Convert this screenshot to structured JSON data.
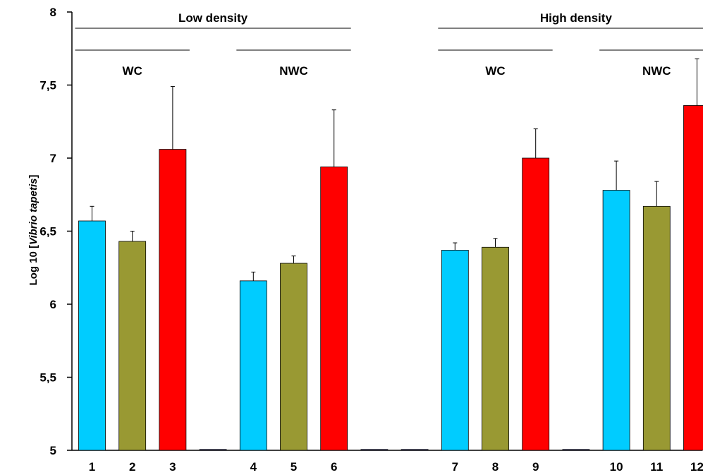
{
  "chart_data": {
    "type": "bar",
    "ylabel_parts": [
      "Log 10 [",
      "Vibrio tapetis",
      "]"
    ],
    "ylim": [
      5,
      8
    ],
    "yticks": [
      "5",
      "5,5",
      "6",
      "6,5",
      "7",
      "7,5",
      "8"
    ],
    "ytick_values": [
      5,
      5.5,
      6,
      6.5,
      7,
      7.5,
      8
    ],
    "categories": [
      "1",
      "2",
      "3",
      "",
      "4",
      "5",
      "6",
      "",
      "",
      "7",
      "8",
      "9",
      "",
      "10",
      "11",
      "12"
    ],
    "values": [
      6.57,
      6.43,
      7.06,
      5.0,
      6.16,
      6.28,
      6.94,
      5.0,
      5.0,
      6.37,
      6.39,
      7.0,
      5.0,
      6.78,
      6.67,
      7.36
    ],
    "errors": [
      0.1,
      0.07,
      0.43,
      0,
      0.06,
      0.05,
      0.39,
      0,
      0,
      0.05,
      0.06,
      0.2,
      0,
      0.2,
      0.17,
      0.32
    ],
    "bar_colors": [
      "#00CCFF",
      "#999933",
      "#FF0000",
      "#000066",
      "#00CCFF",
      "#999933",
      "#FF0000",
      "#000066",
      "#000066",
      "#00CCFF",
      "#999933",
      "#FF0000",
      "#000066",
      "#00CCFF",
      "#999933",
      "#FF0000"
    ],
    "group_labels": [
      {
        "text": "Low density",
        "level": "top",
        "from": 0,
        "to": 6
      },
      {
        "text": "High density",
        "level": "top",
        "from": 9,
        "to": 15
      },
      {
        "text": "WC",
        "level": "sub",
        "from": 0,
        "to": 2
      },
      {
        "text": "NWC",
        "level": "sub",
        "from": 4,
        "to": 6
      },
      {
        "text": "WC",
        "level": "sub",
        "from": 9,
        "to": 11
      },
      {
        "text": "NWC",
        "level": "sub",
        "from": 13,
        "to": 15
      }
    ],
    "grid": false,
    "legend": "none"
  }
}
